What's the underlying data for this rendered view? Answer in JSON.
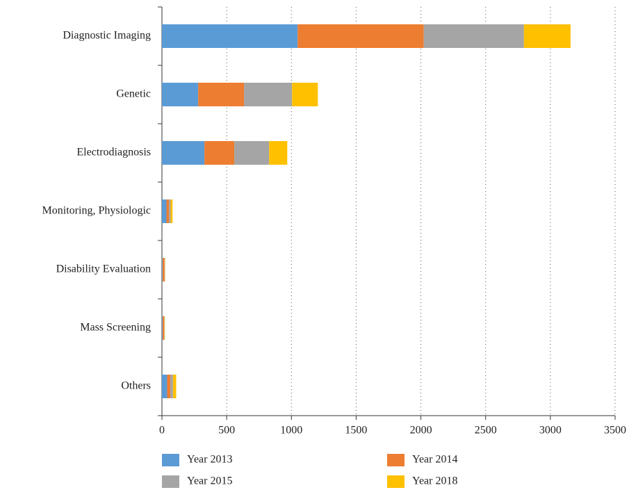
{
  "chart_data": {
    "type": "stacked_barh",
    "categories": [
      "Diagnostic Imaging",
      "Genetic",
      "Electrodiagnosis",
      "Monitoring, Physiologic",
      "Disability Evaluation",
      "Mass Screening",
      "Others"
    ],
    "series": [
      {
        "name": "Year 2013",
        "color": "#5b9bd5",
        "values": [
          1048,
          280,
          328,
          35,
          5,
          5,
          40
        ]
      },
      {
        "name": "Year 2014",
        "color": "#ed7d31",
        "values": [
          974,
          354,
          231,
          20,
          15,
          12,
          25
        ]
      },
      {
        "name": "Year 2015",
        "color": "#a5a5a5",
        "values": [
          774,
          371,
          269,
          12,
          3,
          3,
          20
        ]
      },
      {
        "name": "Year 2018",
        "color": "#ffc000",
        "values": [
          360,
          199,
          140,
          15,
          2,
          3,
          25
        ]
      }
    ],
    "xlim": [
      0,
      3500
    ],
    "xticks": [
      0,
      500,
      1000,
      1500,
      2000,
      2500,
      3000,
      3500
    ],
    "grid": true
  }
}
